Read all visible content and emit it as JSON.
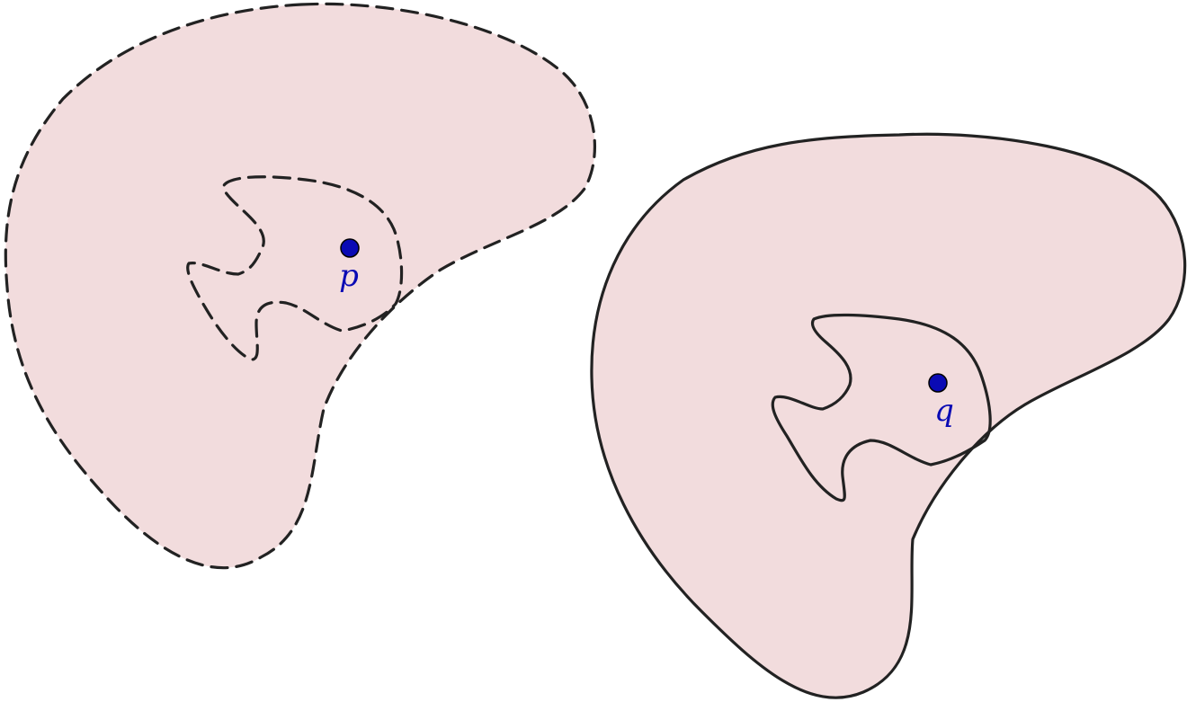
{
  "figure": {
    "left_region": {
      "style": "dashed",
      "point_label": "p"
    },
    "right_region": {
      "style": "solid",
      "point_label": "q"
    }
  },
  "colors": {
    "region_fill": "#f2dcdd",
    "outline": "#222222",
    "point": "#0a0ab4",
    "label": "#0a0ab4",
    "background": "#ffffff"
  }
}
